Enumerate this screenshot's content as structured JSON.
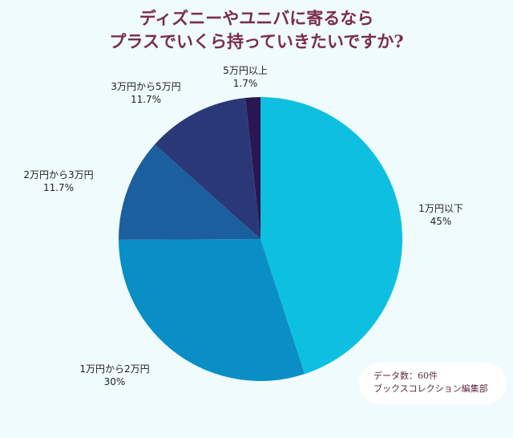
{
  "chart_data": {
    "type": "pie",
    "title": [
      "ディズニーやユニバに寄るなら",
      "プラスでいくら持っていきたいですか?"
    ],
    "start": "top",
    "direction": "clockwise",
    "slices": [
      {
        "label": "1万円以下",
        "value": 45,
        "value_label": "45%",
        "color": "#0dc0e0"
      },
      {
        "label": "1万円から2万円",
        "value": 30,
        "value_label": "30%",
        "color": "#0a8ec6"
      },
      {
        "label": "2万円から3万円",
        "value": 11.7,
        "value_label": "11.7%",
        "color": "#1b5f9e"
      },
      {
        "label": "3万円から5万円",
        "value": 11.7,
        "value_label": "11.7%",
        "color": "#2b3878"
      },
      {
        "label": "5万円以上",
        "value": 1.7,
        "value_label": "1.7%",
        "color": "#2a1752"
      }
    ]
  },
  "note": {
    "line1": "データ数：60件",
    "line2": "ブックスコレクション編集部"
  }
}
